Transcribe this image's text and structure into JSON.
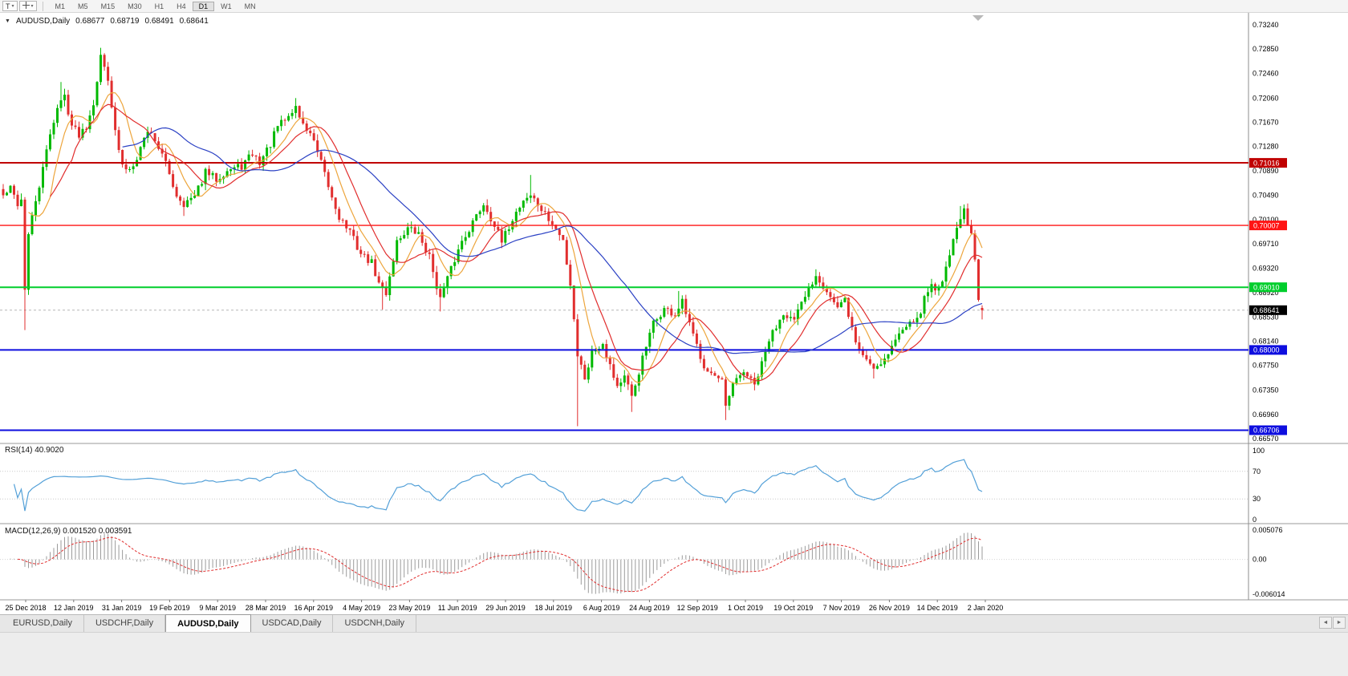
{
  "toolbar": {
    "pattern_button": "T",
    "timeframes": [
      "M1",
      "M5",
      "M15",
      "M30",
      "H1",
      "H4",
      "D1",
      "W1",
      "MN"
    ],
    "active_timeframe": "D1"
  },
  "chart": {
    "header": {
      "symbol": "AUDUSD,Daily",
      "open": "0.68677",
      "high": "0.68719",
      "low": "0.68491",
      "close": "0.68641"
    }
  },
  "rsi_panel": {
    "label": "RSI(14) 40.9020"
  },
  "macd_panel": {
    "label": "MACD(12,26,9) 0.001520 0.003591"
  },
  "tabs": {
    "items": [
      "EURUSD,Daily",
      "USDCHF,Daily",
      "AUDUSD,Daily",
      "USDCAD,Daily",
      "USDCNH,Daily"
    ],
    "active_index": 2
  },
  "chart_data": {
    "type": "candlestick",
    "title": "AUDUSD,Daily",
    "symbol": "AUDUSD",
    "timeframe": "Daily",
    "x_labels": [
      "25 Dec 2018",
      "12 Jan 2019",
      "31 Jan 2019",
      "19 Feb 2019",
      "9 Mar 2019",
      "28 Mar 2019",
      "16 Apr 2019",
      "4 May 2019",
      "23 May 2019",
      "11 Jun 2019",
      "29 Jun 2019",
      "18 Jul 2019",
      "6 Aug 2019",
      "24 Aug 2019",
      "12 Sep 2019",
      "1 Oct 2019",
      "19 Oct 2019",
      "7 Nov 2019",
      "26 Nov 2019",
      "14 Dec 2019",
      "2 Jan 2020"
    ],
    "y_axis": {
      "top_value": 0.7324,
      "bottom_value": 0.6657,
      "labels": [
        "0.73240",
        "0.72850",
        "0.72460",
        "0.72060",
        "0.71670",
        "0.71280",
        "0.70890",
        "0.70490",
        "0.70100",
        "0.69710",
        "0.69320",
        "0.68920",
        "0.68530",
        "0.68140",
        "0.67750",
        "0.67350",
        "0.66960",
        "0.66570"
      ]
    },
    "candles": {
      "count": 272,
      "up_color": "#00b900",
      "down_color": "#e12e2e",
      "close_waypoints": [
        [
          0,
          0.7048
        ],
        [
          2,
          0.706
        ],
        [
          4,
          0.7036
        ],
        [
          5,
          0.7042
        ],
        [
          6,
          0.69
        ],
        [
          7,
          0.6985
        ],
        [
          9,
          0.704
        ],
        [
          11,
          0.709
        ],
        [
          13,
          0.715
        ],
        [
          15,
          0.719
        ],
        [
          17,
          0.721
        ],
        [
          19,
          0.7162
        ],
        [
          21,
          0.7148
        ],
        [
          23,
          0.7162
        ],
        [
          25,
          0.72
        ],
        [
          27,
          0.7272
        ],
        [
          29,
          0.724
        ],
        [
          31,
          0.715
        ],
        [
          33,
          0.7095
        ],
        [
          35,
          0.7092
        ],
        [
          37,
          0.7112
        ],
        [
          40,
          0.7155
        ],
        [
          42,
          0.714
        ],
        [
          45,
          0.71
        ],
        [
          48,
          0.705
        ],
        [
          50,
          0.7036
        ],
        [
          53,
          0.7046
        ],
        [
          56,
          0.7086
        ],
        [
          59,
          0.7076
        ],
        [
          62,
          0.709
        ],
        [
          66,
          0.7096
        ],
        [
          69,
          0.7116
        ],
        [
          71,
          0.7102
        ],
        [
          74,
          0.7132
        ],
        [
          76,
          0.716
        ],
        [
          79,
          0.7176
        ],
        [
          81,
          0.7192
        ],
        [
          83,
          0.7162
        ],
        [
          85,
          0.715
        ],
        [
          88,
          0.71
        ],
        [
          91,
          0.7045
        ],
        [
          93,
          0.7015
        ],
        [
          96,
          0.699
        ],
        [
          99,
          0.6955
        ],
        [
          102,
          0.694
        ],
        [
          104,
          0.6906
        ],
        [
          106,
          0.6892
        ],
        [
          109,
          0.6975
        ],
        [
          112,
          0.6996
        ],
        [
          115,
          0.6986
        ],
        [
          118,
          0.695
        ],
        [
          121,
          0.6882
        ],
        [
          124,
          0.693
        ],
        [
          127,
          0.6976
        ],
        [
          130,
          0.7006
        ],
        [
          133,
          0.7036
        ],
        [
          136,
          0.7002
        ],
        [
          138,
          0.6972
        ],
        [
          141,
          0.7012
        ],
        [
          144,
          0.7042
        ],
        [
          146,
          0.705
        ],
        [
          149,
          0.7026
        ],
        [
          152,
          0.7002
        ],
        [
          155,
          0.6976
        ],
        [
          157,
          0.6906
        ],
        [
          158,
          0.6852
        ],
        [
          159,
          0.6792
        ],
        [
          161,
          0.6756
        ],
        [
          163,
          0.6796
        ],
        [
          166,
          0.6812
        ],
        [
          168,
          0.6776
        ],
        [
          170,
          0.6742
        ],
        [
          172,
          0.6756
        ],
        [
          174,
          0.6722
        ],
        [
          177,
          0.6786
        ],
        [
          180,
          0.6842
        ],
        [
          183,
          0.6866
        ],
        [
          186,
          0.6856
        ],
        [
          188,
          0.6876
        ],
        [
          191,
          0.6822
        ],
        [
          194,
          0.6776
        ],
        [
          197,
          0.6756
        ],
        [
          199,
          0.6746
        ],
        [
          200,
          0.6706
        ],
        [
          202,
          0.6742
        ],
        [
          205,
          0.6766
        ],
        [
          208,
          0.6742
        ],
        [
          210,
          0.6776
        ],
        [
          212,
          0.6816
        ],
        [
          216,
          0.6862
        ],
        [
          219,
          0.6846
        ],
        [
          222,
          0.6886
        ],
        [
          225,
          0.6922
        ],
        [
          228,
          0.6896
        ],
        [
          231,
          0.6866
        ],
        [
          233,
          0.688
        ],
        [
          236,
          0.6812
        ],
        [
          238,
          0.6792
        ],
        [
          241,
          0.6772
        ],
        [
          244,
          0.6786
        ],
        [
          247,
          0.6816
        ],
        [
          250,
          0.6842
        ],
        [
          251,
          0.6852
        ],
        [
          253,
          0.6846
        ],
        [
          255,
          0.6882
        ],
        [
          257,
          0.6906
        ],
        [
          259,
          0.6896
        ],
        [
          261,
          0.6936
        ],
        [
          263,
          0.6976
        ],
        [
          265,
          0.7016
        ],
        [
          266,
          0.7022
        ],
        [
          267,
          0.6998
        ],
        [
          268,
          0.6986
        ],
        [
          269,
          0.6942
        ],
        [
          270,
          0.688
        ],
        [
          271,
          0.68641
        ]
      ],
      "wick_extremes": [
        {
          "i": 6,
          "low": 0.6832
        },
        {
          "i": 16,
          "high": 0.7232
        },
        {
          "i": 27,
          "high": 0.7287
        },
        {
          "i": 50,
          "low": 0.7016
        },
        {
          "i": 81,
          "high": 0.7206
        },
        {
          "i": 105,
          "low": 0.6865
        },
        {
          "i": 121,
          "low": 0.6862
        },
        {
          "i": 146,
          "high": 0.7082
        },
        {
          "i": 159,
          "low": 0.6677
        },
        {
          "i": 174,
          "low": 0.67
        },
        {
          "i": 187,
          "high": 0.6895
        },
        {
          "i": 200,
          "low": 0.6687
        },
        {
          "i": 225,
          "high": 0.693
        },
        {
          "i": 241,
          "low": 0.6754
        },
        {
          "i": 265,
          "high": 0.7032
        }
      ],
      "last": {
        "open": 0.68677,
        "high": 0.68719,
        "low": 0.68491,
        "close": 0.68641
      }
    },
    "moving_averages": [
      {
        "period": 8,
        "color": "#eda53c"
      },
      {
        "period": 14,
        "color": "#e12e2e"
      },
      {
        "period": 34,
        "color": "#2b41c4"
      }
    ],
    "horizontal_lines": [
      {
        "value": 0.71016,
        "label": "0.71016",
        "color": "#c00000",
        "width": 2
      },
      {
        "value": 0.70007,
        "label": "0.70007",
        "color": "#ff1414",
        "width": 1.4
      },
      {
        "value": 0.6901,
        "label": "0.69010",
        "color": "#00ce2c",
        "width": 2
      },
      {
        "value": 0.68,
        "label": "0.68000",
        "color": "#0e0edf",
        "width": 2
      },
      {
        "value": 0.66706,
        "label": "0.66706",
        "color": "#0e0edf",
        "width": 2
      }
    ],
    "current_price": {
      "value": 0.68641,
      "label": "0.68641",
      "badge_color": "#000000"
    },
    "rsi": {
      "period": 14,
      "value": 40.902,
      "color": "#53a0d8",
      "level_values": [
        100,
        70,
        30,
        0
      ]
    },
    "macd": {
      "fast": 12,
      "slow": 26,
      "signal": 9,
      "value": 0.00152,
      "signal_value": 0.003591,
      "hist_color": "#9b9b9b",
      "signal_color": "#e12e2e",
      "scale_max": 0.005076,
      "scale_min": -0.006014,
      "scale_labels": [
        "0.005076",
        "0.00",
        "-0.006014"
      ]
    }
  }
}
